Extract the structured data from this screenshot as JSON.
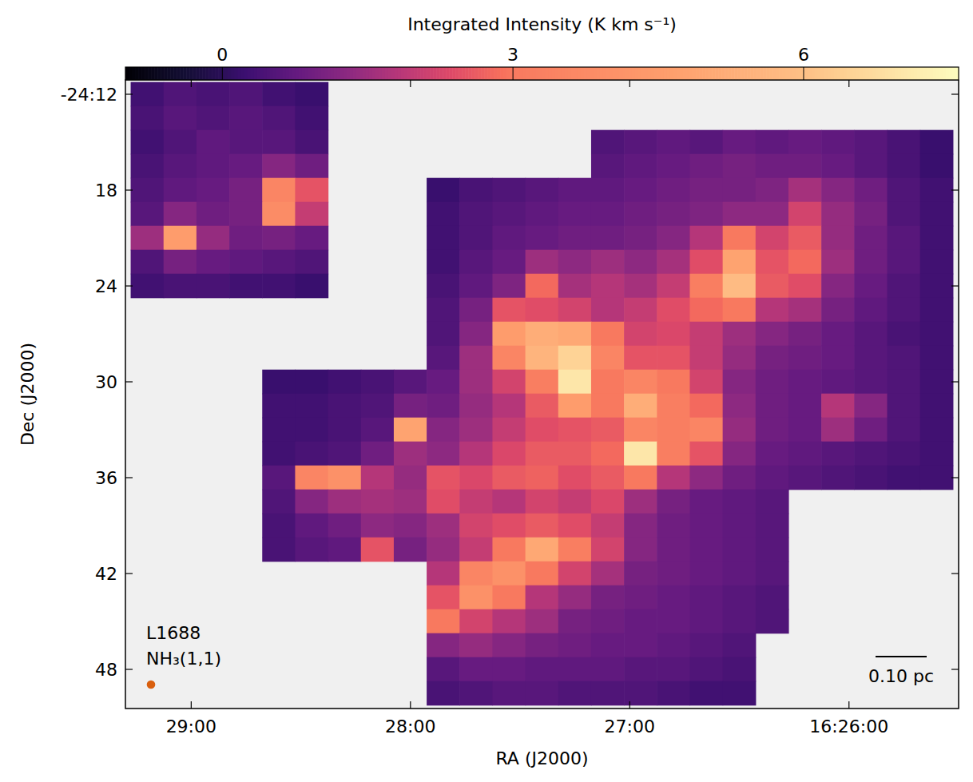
{
  "chart_data": {
    "type": "heatmap",
    "x_label": "RA (J2000)",
    "y_label": "Dec (J2000)",
    "annotations": [
      "L1688",
      "NH₃(1,1)"
    ],
    "scale_bar": {
      "label": "0.10 pc",
      "length_arcmin": 3.2
    },
    "beam": {
      "diameter_arcmin": 0.53,
      "color": "#d95f0e"
    },
    "xlim": [
      29.3,
      25.5
    ],
    "ylim": [
      11.1,
      50.45
    ],
    "xticks": [
      {
        "value": 29,
        "label": "29:00"
      },
      {
        "value": 28,
        "label": "28:00"
      },
      {
        "value": 27,
        "label": "27:00"
      },
      {
        "value": 26,
        "label": "16:26:00"
      }
    ],
    "yticks": [
      {
        "value": 12,
        "label": "-24:12"
      },
      18,
      24,
      30,
      36,
      42,
      48
    ],
    "colorbar": {
      "title": "Integrated Intensity (K km s⁻¹)",
      "range": [
        -1,
        7.6
      ],
      "ticks": [
        0,
        3,
        6
      ]
    },
    "x": [
      29.2,
      29.05,
      28.9,
      28.75,
      28.6,
      28.45,
      28.3,
      28.15,
      28.0,
      27.85,
      27.7,
      27.55,
      27.4,
      27.25,
      27.1,
      26.95,
      26.8,
      26.65,
      26.5,
      26.35,
      26.2,
      26.05,
      25.9,
      25.75,
      25.6
    ],
    "y": [
      12,
      13.5,
      15,
      16.5,
      18,
      19.5,
      21,
      22.5,
      24,
      25.5,
      27,
      28.5,
      30,
      31.5,
      33,
      34.5,
      36,
      37.5,
      39,
      40.5,
      42,
      43.5,
      45,
      46.5,
      48,
      49.5
    ],
    "values": [
      [
        0.3,
        0.5,
        0.4,
        0.5,
        0.3,
        0.2,
        null,
        null,
        null,
        null,
        null,
        null,
        null,
        null,
        null,
        null,
        null,
        null,
        null,
        null,
        null,
        null,
        null,
        null,
        null
      ],
      [
        0.4,
        0.6,
        0.5,
        0.6,
        0.5,
        0.3,
        null,
        null,
        null,
        null,
        null,
        null,
        null,
        null,
        null,
        null,
        null,
        null,
        null,
        null,
        null,
        null,
        null,
        null,
        null
      ],
      [
        0.3,
        0.5,
        0.7,
        0.6,
        0.6,
        0.4,
        null,
        null,
        null,
        null,
        null,
        null,
        null,
        null,
        0.5,
        0.6,
        0.7,
        0.6,
        0.8,
        0.7,
        0.8,
        0.7,
        0.6,
        0.4,
        0.2
      ],
      [
        0.4,
        0.6,
        0.7,
        0.8,
        1.2,
        0.9,
        null,
        null,
        null,
        null,
        null,
        null,
        null,
        null,
        0.6,
        0.7,
        0.8,
        0.9,
        1.0,
        0.9,
        0.9,
        0.8,
        0.6,
        0.4,
        0.2
      ],
      [
        0.5,
        0.7,
        0.8,
        1.0,
        3.5,
        2.5,
        null,
        null,
        null,
        0.2,
        0.4,
        0.5,
        0.6,
        0.7,
        0.7,
        0.8,
        0.9,
        1.0,
        1.0,
        1.1,
        1.6,
        1.2,
        0.9,
        0.5,
        0.3
      ],
      [
        0.6,
        1.2,
        0.9,
        1.0,
        3.8,
        2.0,
        null,
        null,
        null,
        0.3,
        0.5,
        0.6,
        0.7,
        0.8,
        0.8,
        0.9,
        1.0,
        1.1,
        1.3,
        1.3,
        2.2,
        1.4,
        1.0,
        0.5,
        0.3
      ],
      [
        1.5,
        4.5,
        1.4,
        0.9,
        1.0,
        0.8,
        null,
        null,
        null,
        0.3,
        0.5,
        0.7,
        0.8,
        0.9,
        0.9,
        1.0,
        1.2,
        1.8,
        3.0,
        2.2,
        2.6,
        1.4,
        0.9,
        0.6,
        0.3
      ],
      [
        0.5,
        1.0,
        0.8,
        0.7,
        0.6,
        0.5,
        null,
        null,
        null,
        0.3,
        0.6,
        0.8,
        1.5,
        1.3,
        1.5,
        1.3,
        1.6,
        2.4,
        4.8,
        2.5,
        2.8,
        1.5,
        0.9,
        0.6,
        0.3
      ],
      [
        0.3,
        0.4,
        0.4,
        0.3,
        0.3,
        0.2,
        null,
        null,
        null,
        0.4,
        0.7,
        1.1,
        2.8,
        1.6,
        1.8,
        1.6,
        2.0,
        3.2,
        5.8,
        2.6,
        2.4,
        1.2,
        0.8,
        0.5,
        0.3
      ],
      [
        null,
        null,
        null,
        null,
        null,
        null,
        null,
        null,
        null,
        0.5,
        1.0,
        2.5,
        2.4,
        2.2,
        1.8,
        2.0,
        2.4,
        2.8,
        3.0,
        1.8,
        1.6,
        1.0,
        0.7,
        0.5,
        0.3
      ],
      [
        null,
        null,
        null,
        null,
        null,
        null,
        null,
        null,
        null,
        0.5,
        1.2,
        4.5,
        5.2,
        5.0,
        3.0,
        2.2,
        2.3,
        2.0,
        1.5,
        1.2,
        1.0,
        0.8,
        0.6,
        0.4,
        0.3
      ],
      [
        null,
        null,
        null,
        null,
        null,
        null,
        null,
        null,
        null,
        0.6,
        1.5,
        3.5,
        5.5,
        6.5,
        3.5,
        2.5,
        2.5,
        2.0,
        1.4,
        1.0,
        0.9,
        0.8,
        0.6,
        0.5,
        0.3
      ],
      [
        null,
        null,
        null,
        null,
        0.2,
        0.2,
        0.3,
        0.4,
        0.6,
        0.8,
        1.5,
        2.2,
        3.2,
        7.0,
        3.0,
        3.5,
        3.0,
        2.2,
        1.2,
        0.9,
        0.8,
        0.7,
        0.6,
        0.5,
        0.3
      ],
      [
        null,
        null,
        null,
        null,
        0.3,
        0.3,
        0.4,
        0.5,
        1.0,
        0.9,
        1.4,
        1.8,
        2.6,
        4.5,
        3.0,
        5.2,
        3.2,
        2.8,
        1.3,
        0.9,
        0.8,
        1.8,
        1.2,
        0.5,
        0.3
      ],
      [
        null,
        null,
        null,
        null,
        0.3,
        0.3,
        0.4,
        0.6,
        4.8,
        1.2,
        1.5,
        2.0,
        2.4,
        2.5,
        2.6,
        3.5,
        3.2,
        3.5,
        1.4,
        0.9,
        0.8,
        1.5,
        0.9,
        0.5,
        0.3
      ],
      [
        null,
        null,
        null,
        null,
        0.3,
        0.4,
        0.5,
        0.9,
        1.5,
        1.3,
        1.8,
        2.3,
        2.6,
        2.6,
        2.8,
        7.0,
        3.2,
        2.5,
        1.2,
        0.8,
        0.7,
        0.6,
        0.5,
        0.4,
        0.3
      ],
      [
        null,
        null,
        null,
        null,
        0.6,
        3.5,
        4.0,
        1.8,
        1.4,
        2.5,
        2.3,
        2.6,
        2.7,
        2.4,
        2.6,
        3.0,
        1.8,
        1.3,
        0.9,
        0.7,
        0.6,
        0.5,
        0.4,
        0.3,
        0.3
      ],
      [
        null,
        null,
        null,
        null,
        0.5,
        1.2,
        1.5,
        1.6,
        1.5,
        2.4,
        2.0,
        1.8,
        2.2,
        2.0,
        2.3,
        1.5,
        1.0,
        0.8,
        0.7,
        0.6,
        null,
        null,
        null,
        null,
        null
      ],
      [
        null,
        null,
        null,
        null,
        0.4,
        0.7,
        0.9,
        1.3,
        1.2,
        1.5,
        2.2,
        2.4,
        2.6,
        2.4,
        2.0,
        1.2,
        0.9,
        0.8,
        0.7,
        0.6,
        null,
        null,
        null,
        null,
        null
      ],
      [
        null,
        null,
        null,
        null,
        0.4,
        0.6,
        0.7,
        2.5,
        1.0,
        1.4,
        2.0,
        3.0,
        5.0,
        3.2,
        2.2,
        1.2,
        0.9,
        0.8,
        0.7,
        0.6,
        null,
        null,
        null,
        null,
        null
      ],
      [
        null,
        null,
        null,
        null,
        null,
        null,
        null,
        null,
        null,
        1.8,
        3.5,
        4.0,
        3.0,
        2.2,
        1.6,
        1.0,
        0.9,
        0.8,
        0.7,
        0.6,
        null,
        null,
        null,
        null,
        null
      ],
      [
        null,
        null,
        null,
        null,
        null,
        null,
        null,
        null,
        null,
        2.5,
        4.0,
        3.0,
        1.8,
        1.4,
        1.0,
        0.9,
        0.8,
        0.7,
        0.6,
        0.5,
        null,
        null,
        null,
        null,
        null
      ],
      [
        null,
        null,
        null,
        null,
        null,
        null,
        null,
        null,
        null,
        3.0,
        2.2,
        1.8,
        1.5,
        1.0,
        0.9,
        0.8,
        0.8,
        0.7,
        0.6,
        0.5,
        null,
        null,
        null,
        null,
        null
      ],
      [
        null,
        null,
        null,
        null,
        null,
        null,
        null,
        null,
        null,
        1.2,
        1.4,
        1.2,
        1.0,
        0.9,
        0.8,
        0.8,
        0.7,
        0.6,
        0.5,
        null,
        null,
        null,
        null,
        null,
        null
      ],
      [
        null,
        null,
        null,
        null,
        null,
        null,
        null,
        null,
        null,
        0.6,
        0.8,
        0.8,
        0.7,
        0.7,
        0.7,
        0.6,
        0.6,
        0.5,
        0.4,
        null,
        null,
        null,
        null,
        null,
        null
      ],
      [
        null,
        null,
        null,
        null,
        null,
        null,
        null,
        null,
        null,
        0.4,
        0.5,
        0.6,
        0.6,
        0.5,
        0.5,
        0.5,
        0.4,
        0.3,
        0.3,
        null,
        null,
        null,
        null,
        null,
        null
      ]
    ]
  }
}
